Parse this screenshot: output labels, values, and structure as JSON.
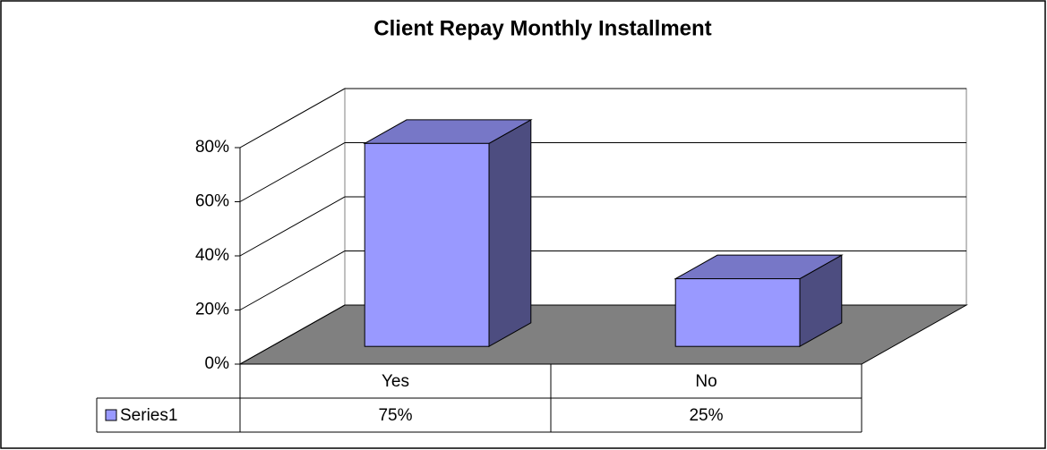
{
  "chart_data": {
    "type": "bar3d",
    "title": "Client Repay Monthly Installment",
    "categories": [
      "Yes",
      "No"
    ],
    "series": [
      {
        "name": "Series1",
        "color": "#9999ff",
        "values": [
          75,
          25
        ],
        "value_labels": [
          "75%",
          "25%"
        ]
      }
    ],
    "ylim": [
      0,
      80
    ],
    "yticks": [
      {
        "value": 0,
        "label": "0%"
      },
      {
        "value": 20,
        "label": "20%"
      },
      {
        "value": 40,
        "label": "40%"
      },
      {
        "value": 60,
        "label": "60%"
      },
      {
        "value": 80,
        "label": "80%"
      }
    ],
    "grid": true,
    "data_table": true
  }
}
